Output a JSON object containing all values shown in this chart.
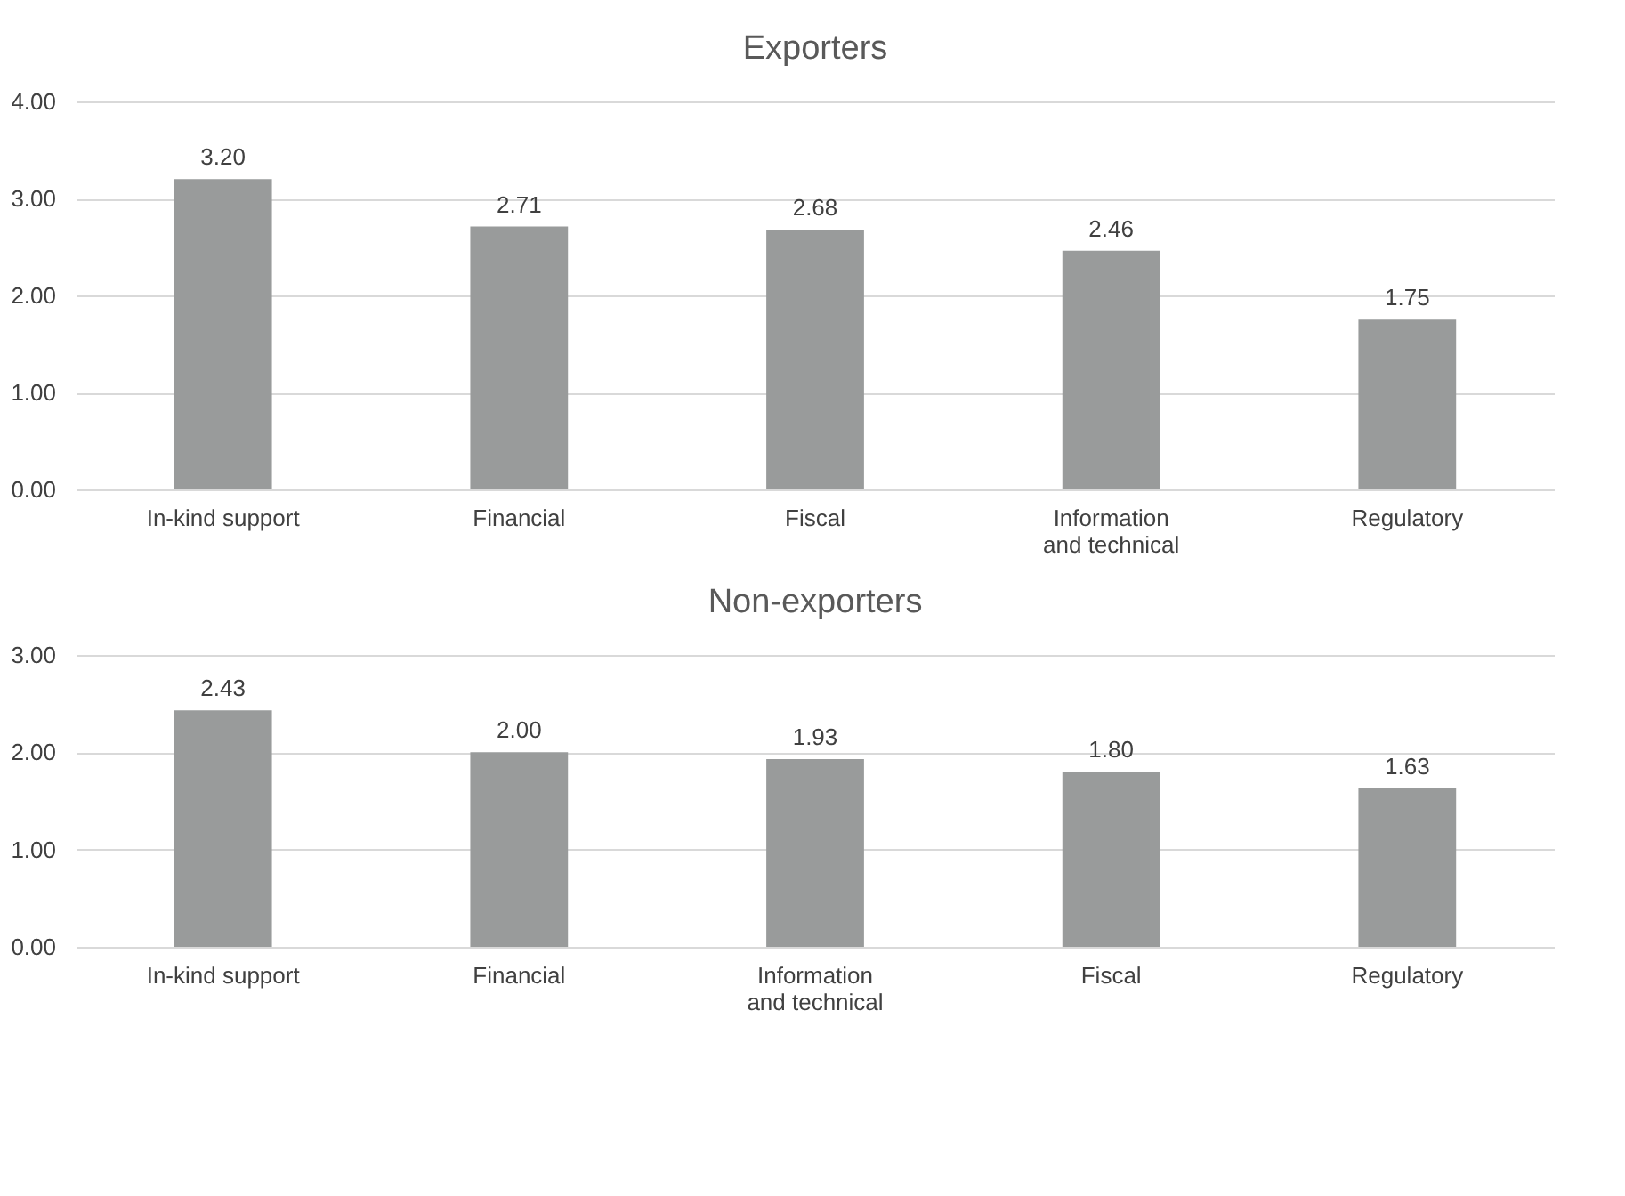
{
  "chart_data": [
    {
      "type": "bar",
      "title": "Exporters",
      "categories": [
        "In-kind support",
        "Financial",
        "Fiscal",
        "Information and technical",
        "Regulatory"
      ],
      "values": [
        3.2,
        2.71,
        2.68,
        2.46,
        1.75
      ],
      "value_labels": [
        "3.20",
        "2.71",
        "2.68",
        "2.46",
        "1.75"
      ],
      "color": "#999b9b",
      "ylim": [
        0,
        4
      ],
      "yticks": [
        {
          "value": 0,
          "label": "0.00"
        },
        {
          "value": 1,
          "label": "1.00"
        },
        {
          "value": 2,
          "label": "2.00"
        },
        {
          "value": 3,
          "label": "3.00"
        },
        {
          "value": 4,
          "label": "4.00"
        }
      ],
      "grid": "y"
    },
    {
      "type": "bar",
      "title": "Non-exporters",
      "categories": [
        "In-kind support",
        "Financial",
        "Information and technical",
        "Fiscal",
        "Regulatory"
      ],
      "values": [
        2.43,
        2.0,
        1.93,
        1.8,
        1.63
      ],
      "value_labels": [
        "2.43",
        "2.00",
        "1.93",
        "1.80",
        "1.63"
      ],
      "color": "#999b9b",
      "ylim": [
        0,
        3
      ],
      "yticks": [
        {
          "value": 0,
          "label": "0.00"
        },
        {
          "value": 1,
          "label": "1.00"
        },
        {
          "value": 2,
          "label": "2.00"
        },
        {
          "value": 3,
          "label": "3.00"
        }
      ],
      "grid": "y"
    }
  ]
}
